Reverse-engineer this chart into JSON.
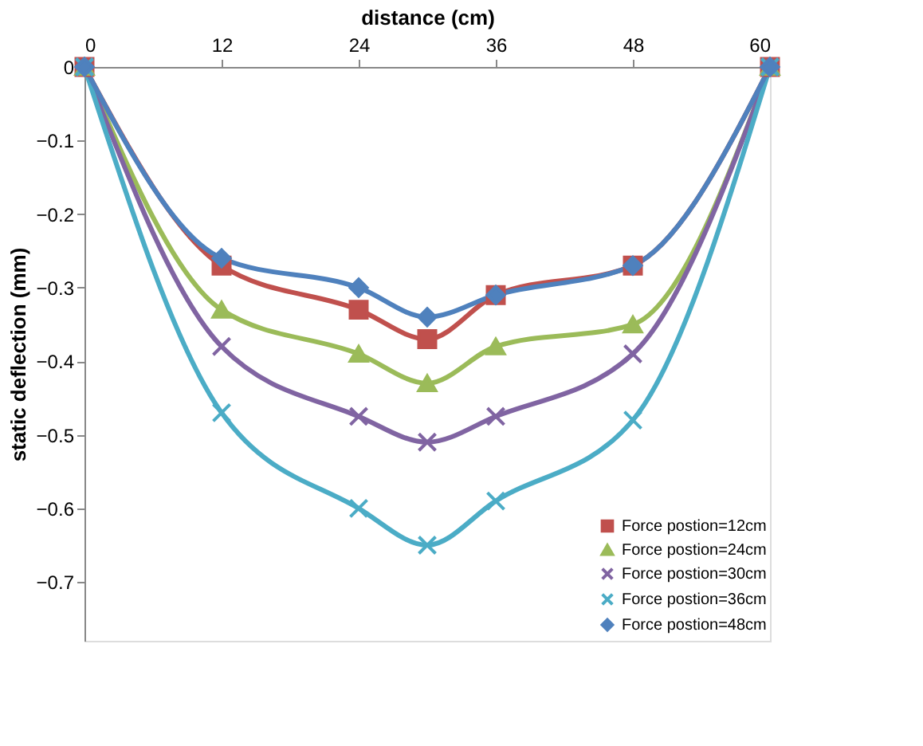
{
  "chart_data": {
    "type": "line",
    "xlabel": "distance (cm)",
    "ylabel": "static deflection (mm)",
    "x": [
      0,
      12,
      24,
      30,
      36,
      48,
      60
    ],
    "xlim": [
      0,
      60
    ],
    "xticks": [
      0,
      12,
      24,
      36,
      48,
      60
    ],
    "ylim": [
      -0.78,
      0
    ],
    "yticks": [
      0,
      -0.1,
      -0.2,
      -0.3,
      -0.4,
      -0.5,
      -0.6,
      -0.7
    ],
    "grid": false,
    "legend": "bottom right",
    "series": [
      {
        "name": "Force postion=12cm",
        "color": "#c0504d",
        "marker": "square",
        "values": [
          0,
          -0.27,
          -0.33,
          -0.37,
          -0.31,
          -0.27,
          0
        ]
      },
      {
        "name": "Force postion=24cm",
        "color": "#9bbb59",
        "marker": "triangle",
        "values": [
          0,
          -0.33,
          -0.39,
          -0.43,
          -0.38,
          -0.35,
          0
        ]
      },
      {
        "name": "Force postion=30cm",
        "color": "#8064a2",
        "marker": "cross",
        "values": [
          0,
          -0.38,
          -0.475,
          -0.51,
          -0.475,
          -0.39,
          0
        ]
      },
      {
        "name": "Force postion=36cm",
        "color": "#4bacc6",
        "marker": "cross",
        "values": [
          0,
          -0.47,
          -0.6,
          -0.65,
          -0.59,
          -0.48,
          0
        ]
      },
      {
        "name": "Force postion=48cm",
        "color": "#4f81bd",
        "marker": "diamond",
        "values": [
          0,
          -0.26,
          -0.3,
          -0.34,
          -0.31,
          -0.27,
          0
        ]
      }
    ]
  }
}
